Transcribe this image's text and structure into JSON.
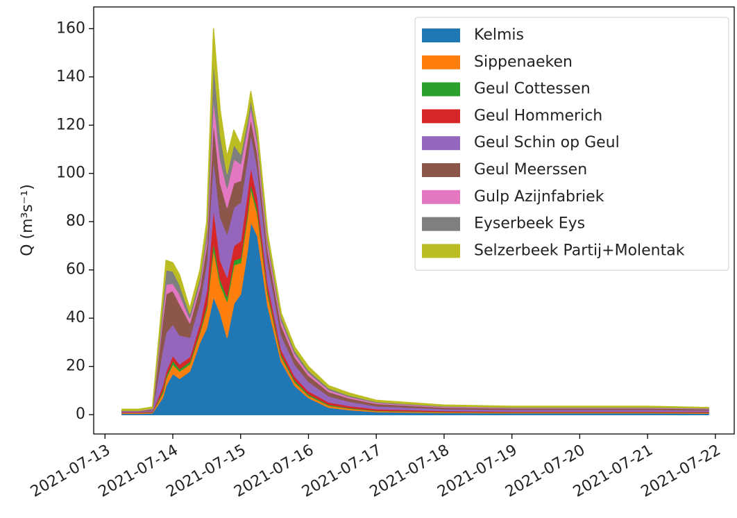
{
  "chart_data": {
    "type": "stackedarea",
    "ylabel": "Q (m³s⁻¹)",
    "x": [
      "2021-07-13T06:00",
      "2021-07-13T12:00",
      "2021-07-13T16:48",
      "2021-07-13T20:24",
      "2021-07-13T21:36",
      "2021-07-14T00:00",
      "2021-07-14T02:24",
      "2021-07-14T06:00",
      "2021-07-14T09:36",
      "2021-07-14T12:00",
      "2021-07-14T14:24",
      "2021-07-14T16:48",
      "2021-07-14T19:12",
      "2021-07-14T21:36",
      "2021-07-15T00:00",
      "2021-07-15T02:24",
      "2021-07-15T03:36",
      "2021-07-15T06:00",
      "2021-07-15T09:36",
      "2021-07-15T14:24",
      "2021-07-15T19:12",
      "2021-07-16T00:00",
      "2021-07-16T07:12",
      "2021-07-16T14:24",
      "2021-07-17T00:00",
      "2021-07-18T00:00",
      "2021-07-19T00:00",
      "2021-07-20T00:00",
      "2021-07-21T00:00",
      "2021-07-21T21:36"
    ],
    "series": [
      {
        "name": "Kelmis",
        "color": "#1f77b4",
        "values": [
          0.5,
          0.5,
          0.7,
          7,
          12,
          17,
          15,
          18,
          30,
          36,
          49,
          42,
          32,
          46,
          50,
          68,
          80,
          74,
          45,
          22,
          12,
          7,
          3,
          2,
          1.2,
          0.8,
          0.7,
          0.7,
          0.7,
          0.6
        ]
      },
      {
        "name": "Sippenaeken",
        "color": "#ff7f0e",
        "values": [
          0.3,
          0.3,
          0.3,
          2,
          3,
          4,
          3,
          3,
          4,
          8,
          20,
          12,
          15,
          16,
          13,
          14,
          14,
          9,
          5,
          2,
          1.5,
          1,
          0.8,
          0.6,
          0.4,
          0.3,
          0.3,
          0.3,
          0.3,
          0.3
        ]
      },
      {
        "name": "Geul Cottessen",
        "color": "#2ca02c",
        "values": [
          0.1,
          0.1,
          0.1,
          1,
          1,
          1.5,
          1,
          1,
          1,
          1.5,
          3,
          2,
          2,
          2,
          2,
          2,
          2,
          2,
          1.5,
          1,
          0.8,
          0.6,
          0.4,
          0.3,
          0.2,
          0.15,
          0.1,
          0.1,
          0.1,
          0.1
        ]
      },
      {
        "name": "Geul Hommerich",
        "color": "#d62728",
        "values": [
          0.2,
          0.2,
          0.3,
          2,
          2,
          2,
          2,
          2,
          3,
          6,
          14,
          8,
          8,
          6,
          7,
          8,
          7,
          5,
          3,
          2,
          1.5,
          1.2,
          1,
          0.8,
          0.6,
          0.4,
          0.3,
          0.3,
          0.3,
          0.3
        ]
      },
      {
        "name": "Geul Schin op Geul",
        "color": "#9467bd",
        "values": [
          0.3,
          0.3,
          0.5,
          15,
          16,
          13,
          12,
          8,
          9,
          12,
          21,
          18,
          18,
          16,
          16,
          14,
          14,
          12,
          9,
          6,
          5,
          4,
          2.5,
          1.8,
          1.2,
          0.8,
          0.7,
          0.7,
          0.7,
          0.6
        ]
      },
      {
        "name": "Geul Meerssen",
        "color": "#8c564b",
        "values": [
          0.2,
          0.2,
          0.4,
          12,
          16,
          14,
          13,
          6,
          6,
          7,
          15,
          14,
          11,
          10,
          9,
          8,
          6,
          6,
          5,
          4,
          3,
          2.5,
          1.8,
          1.4,
          1,
          0.6,
          0.6,
          0.6,
          0.6,
          0.5
        ]
      },
      {
        "name": "Gulp Azijnfabriek",
        "color": "#e377c2",
        "values": [
          0.1,
          0.1,
          0.2,
          3,
          4,
          3,
          4,
          2,
          2,
          3,
          10,
          10,
          8,
          10,
          7,
          5,
          5,
          4,
          2.5,
          2,
          1.5,
          1.2,
          0.8,
          0.6,
          0.4,
          0.3,
          0.2,
          0.2,
          0.2,
          0.2
        ]
      },
      {
        "name": "Eyserbeek Eys",
        "color": "#7f7f7f",
        "values": [
          0.1,
          0.1,
          0.2,
          4,
          6,
          5,
          4,
          2,
          2,
          3,
          16,
          10,
          6,
          6,
          4,
          3,
          3,
          3,
          2,
          1.5,
          1.2,
          1,
          0.7,
          0.5,
          0.4,
          0.25,
          0.2,
          0.2,
          0.2,
          0.2
        ]
      },
      {
        "name": "Selzerbeek Partij+Molentak",
        "color": "#bcbd22",
        "values": [
          0.5,
          0.5,
          0.5,
          3,
          4,
          3.5,
          4,
          2,
          3,
          3.5,
          12,
          10,
          7,
          6,
          4,
          3,
          3,
          3,
          2,
          1.5,
          1.5,
          1.5,
          1,
          1,
          0.6,
          0.4,
          0.4,
          0.4,
          0.4,
          0.2
        ]
      }
    ],
    "xlim": [
      "2021-07-12T20:00",
      "2021-07-22T06:40"
    ],
    "xticks": [
      "2021-07-13",
      "2021-07-14",
      "2021-07-15",
      "2021-07-16",
      "2021-07-17",
      "2021-07-18",
      "2021-07-19",
      "2021-07-20",
      "2021-07-21",
      "2021-07-22"
    ],
    "ylim": [
      -8,
      169
    ],
    "yticks": [
      0,
      20,
      40,
      60,
      80,
      100,
      120,
      140,
      160
    ],
    "legend": "upper right"
  }
}
